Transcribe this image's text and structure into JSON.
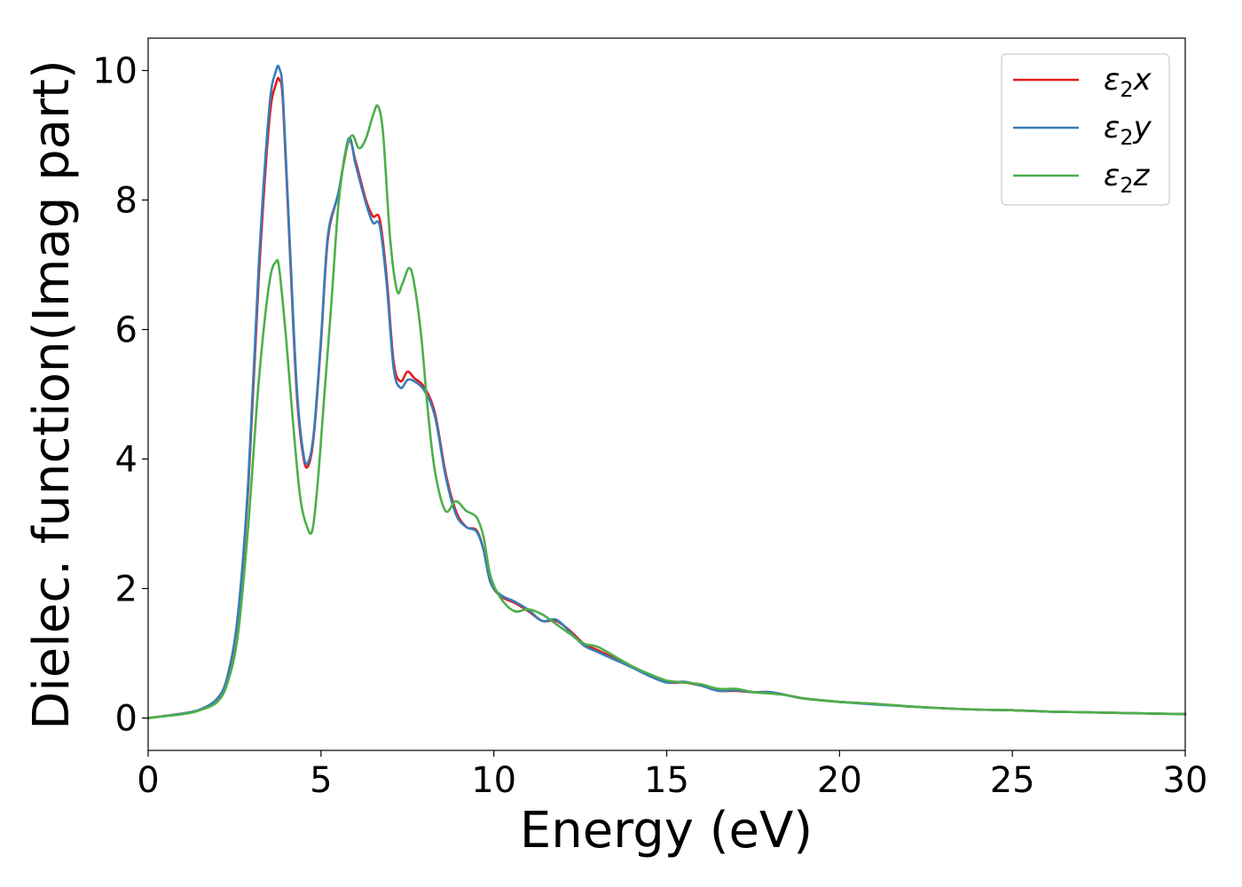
{
  "chart_data": {
    "type": "line",
    "title": "",
    "xlabel": "Energy (eV)",
    "ylabel": "Dielec. function(Imag part)",
    "xlim": [
      0,
      30
    ],
    "ylim": [
      -0.5,
      10.5
    ],
    "xticks": [
      0,
      5,
      10,
      15,
      20,
      25,
      30
    ],
    "yticks": [
      0,
      2,
      4,
      6,
      8,
      10
    ],
    "grid": false,
    "legend_position": "top-right",
    "series": [
      {
        "name": "ε₂x",
        "legend_base": "ε",
        "legend_sub": "2",
        "legend_suffix": "x",
        "color": "#e41a1c",
        "x": [
          0,
          1,
          1.5,
          2,
          2.3,
          2.6,
          2.9,
          3.2,
          3.5,
          3.7,
          3.8,
          3.9,
          4.1,
          4.3,
          4.5,
          4.65,
          4.8,
          5.0,
          5.2,
          5.5,
          5.8,
          6.0,
          6.3,
          6.5,
          6.7,
          6.9,
          7.1,
          7.3,
          7.5,
          7.7,
          8.0,
          8.3,
          8.6,
          8.9,
          9.2,
          9.5,
          9.7,
          9.9,
          10.2,
          10.6,
          11.0,
          11.4,
          11.8,
          12.2,
          12.6,
          13.0,
          13.5,
          14.0,
          14.5,
          15.0,
          15.5,
          16.0,
          16.5,
          17.0,
          17.5,
          18.0,
          18.5,
          19.0,
          20.0,
          21.0,
          22.0,
          23.0,
          24.0,
          25.0,
          26.0,
          27.0,
          28.0,
          29.0,
          30.0
        ],
        "values": [
          0.0,
          0.07,
          0.13,
          0.3,
          0.65,
          1.6,
          3.6,
          6.8,
          9.2,
          9.8,
          9.85,
          9.5,
          7.2,
          5.0,
          4.0,
          3.92,
          4.4,
          5.8,
          7.4,
          8.1,
          8.9,
          8.6,
          8.0,
          7.75,
          7.7,
          6.8,
          5.5,
          5.2,
          5.35,
          5.25,
          5.1,
          4.7,
          3.8,
          3.2,
          2.95,
          2.9,
          2.6,
          2.1,
          1.88,
          1.78,
          1.65,
          1.5,
          1.5,
          1.35,
          1.15,
          1.05,
          0.92,
          0.8,
          0.65,
          0.55,
          0.55,
          0.5,
          0.42,
          0.42,
          0.4,
          0.4,
          0.35,
          0.3,
          0.25,
          0.22,
          0.18,
          0.15,
          0.13,
          0.12,
          0.1,
          0.09,
          0.08,
          0.07,
          0.06
        ]
      },
      {
        "name": "ε₂y",
        "legend_base": "ε",
        "legend_sub": "2",
        "legend_suffix": "y",
        "color": "#377eb8",
        "x": [
          0,
          1,
          1.5,
          2,
          2.3,
          2.6,
          2.9,
          3.2,
          3.5,
          3.7,
          3.8,
          3.9,
          4.1,
          4.3,
          4.5,
          4.65,
          4.8,
          5.0,
          5.2,
          5.5,
          5.8,
          6.0,
          6.3,
          6.5,
          6.7,
          6.9,
          7.1,
          7.3,
          7.5,
          7.7,
          8.0,
          8.3,
          8.6,
          8.9,
          9.2,
          9.5,
          9.7,
          9.9,
          10.2,
          10.6,
          11.0,
          11.4,
          11.8,
          12.2,
          12.6,
          13.0,
          13.5,
          14.0,
          14.5,
          15.0,
          15.5,
          16.0,
          16.5,
          17.0,
          17.5,
          18.0,
          18.5,
          19.0,
          20.0,
          21.0,
          22.0,
          23.0,
          24.0,
          25.0,
          26.0,
          27.0,
          28.0,
          29.0,
          30.0
        ],
        "values": [
          0.0,
          0.07,
          0.13,
          0.3,
          0.65,
          1.6,
          3.7,
          7.0,
          9.4,
          10.0,
          10.02,
          9.6,
          7.3,
          5.1,
          4.05,
          3.98,
          4.45,
          5.85,
          7.45,
          8.1,
          8.95,
          8.55,
          7.95,
          7.65,
          7.6,
          6.7,
          5.4,
          5.1,
          5.22,
          5.2,
          5.05,
          4.65,
          3.75,
          3.15,
          2.95,
          2.88,
          2.6,
          2.1,
          1.9,
          1.8,
          1.67,
          1.5,
          1.52,
          1.33,
          1.12,
          1.02,
          0.9,
          0.78,
          0.65,
          0.55,
          0.56,
          0.5,
          0.42,
          0.43,
          0.4,
          0.4,
          0.35,
          0.3,
          0.25,
          0.21,
          0.18,
          0.15,
          0.13,
          0.12,
          0.1,
          0.09,
          0.08,
          0.07,
          0.06
        ]
      },
      {
        "name": "ε₂z",
        "legend_base": "ε",
        "legend_sub": "2",
        "legend_suffix": "z",
        "color": "#4daf4a",
        "x": [
          0,
          1,
          1.5,
          2,
          2.3,
          2.6,
          2.9,
          3.2,
          3.5,
          3.7,
          3.8,
          4.0,
          4.2,
          4.4,
          4.6,
          4.75,
          4.9,
          5.1,
          5.3,
          5.5,
          5.7,
          5.9,
          6.1,
          6.3,
          6.5,
          6.65,
          6.8,
          7.0,
          7.2,
          7.35,
          7.55,
          7.7,
          7.9,
          8.1,
          8.3,
          8.6,
          8.9,
          9.2,
          9.5,
          9.7,
          9.9,
          10.2,
          10.6,
          11.0,
          11.4,
          11.8,
          12.2,
          12.6,
          13.0,
          13.5,
          14.0,
          14.5,
          15.0,
          15.5,
          16.0,
          16.5,
          17.0,
          17.5,
          18.0,
          18.5,
          19.0,
          20.0,
          21.0,
          22.0,
          23.0,
          24.0,
          25.0,
          26.0,
          27.0,
          28.0,
          29.0,
          30.0
        ],
        "values": [
          0.0,
          0.06,
          0.12,
          0.25,
          0.55,
          1.3,
          3.0,
          5.2,
          6.7,
          7.05,
          6.9,
          5.8,
          4.5,
          3.4,
          2.95,
          2.9,
          3.6,
          5.0,
          6.4,
          7.9,
          8.7,
          9.0,
          8.8,
          8.95,
          9.3,
          9.45,
          9.0,
          7.4,
          6.6,
          6.7,
          6.95,
          6.7,
          5.9,
          4.7,
          3.8,
          3.2,
          3.35,
          3.2,
          3.1,
          2.8,
          2.2,
          1.85,
          1.65,
          1.68,
          1.6,
          1.45,
          1.3,
          1.15,
          1.1,
          0.95,
          0.8,
          0.68,
          0.58,
          0.55,
          0.52,
          0.45,
          0.45,
          0.4,
          0.38,
          0.35,
          0.3,
          0.25,
          0.22,
          0.18,
          0.15,
          0.13,
          0.12,
          0.1,
          0.09,
          0.08,
          0.07,
          0.06
        ]
      }
    ]
  }
}
